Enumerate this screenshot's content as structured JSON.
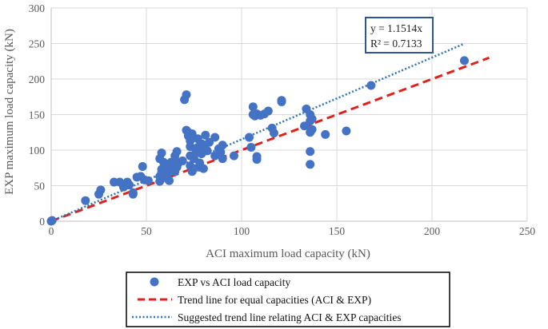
{
  "chart_data": {
    "type": "scatter",
    "xlabel": "ACI maximum load capacity (kN)",
    "ylabel": "EXP maximum load capacity (kN)",
    "xlim": [
      0,
      250
    ],
    "ylim": [
      0,
      300
    ],
    "x_ticks": [
      "0",
      "50",
      "100",
      "150",
      "200",
      "250"
    ],
    "y_ticks": [
      "0",
      "50",
      "100",
      "150",
      "200",
      "250",
      "300"
    ],
    "grid": true,
    "equation_box": {
      "line1": "y = 1.1514x",
      "line2": "R² = 0.7133"
    },
    "legend": {
      "placement": "bottom",
      "entries": [
        {
          "label": "EXP vs ACI load capacity",
          "color": "#4472C4",
          "marker": "circle"
        },
        {
          "label": "Trend line for equal capacities (ACI & EXP)",
          "color": "#E0201B",
          "marker": "dashed-line"
        },
        {
          "label": "Suggested trend line relating ACI & EXP capacities",
          "color": "#2E75B6",
          "marker": "dotted-line"
        }
      ]
    },
    "series": [
      {
        "name": "EXP vs ACI load capacity",
        "color": "#4472C4",
        "points": [
          [
            0,
            0
          ],
          [
            0.5,
            1
          ],
          [
            18,
            29
          ],
          [
            25,
            38
          ],
          [
            26,
            44
          ],
          [
            33,
            55
          ],
          [
            36,
            55
          ],
          [
            38,
            48
          ],
          [
            40,
            55
          ],
          [
            41,
            51
          ],
          [
            43,
            40
          ],
          [
            43,
            38
          ],
          [
            45,
            62
          ],
          [
            47,
            63
          ],
          [
            48,
            77
          ],
          [
            49,
            58
          ],
          [
            51,
            57
          ],
          [
            57,
            56
          ],
          [
            57,
            63
          ],
          [
            57,
            88
          ],
          [
            58,
            96
          ],
          [
            58,
            69
          ],
          [
            58,
            73
          ],
          [
            59,
            83
          ],
          [
            60,
            71
          ],
          [
            60,
            79
          ],
          [
            61,
            65
          ],
          [
            61,
            60
          ],
          [
            62,
            57
          ],
          [
            63,
            75
          ],
          [
            63,
            83
          ],
          [
            64,
            78
          ],
          [
            65,
            70
          ],
          [
            65,
            92
          ],
          [
            66,
            98
          ],
          [
            66,
            76
          ],
          [
            67,
            83
          ],
          [
            69,
            85
          ],
          [
            70,
            171
          ],
          [
            71,
            178
          ],
          [
            71,
            128
          ],
          [
            72,
            125
          ],
          [
            72,
            120
          ],
          [
            73,
            113
          ],
          [
            73,
            105
          ],
          [
            73,
            78
          ],
          [
            73,
            92
          ],
          [
            74,
            123
          ],
          [
            74,
            70
          ],
          [
            75,
            74
          ],
          [
            75,
            88
          ],
          [
            76,
            100
          ],
          [
            76,
            96
          ],
          [
            77,
            116
          ],
          [
            77,
            104
          ],
          [
            78,
            82
          ],
          [
            78,
            76
          ],
          [
            79,
            95
          ],
          [
            79,
            109
          ],
          [
            80,
            74
          ],
          [
            80,
            103
          ],
          [
            81,
            121
          ],
          [
            81,
            100
          ],
          [
            82,
            99
          ],
          [
            83,
            111
          ],
          [
            86,
            118
          ],
          [
            86,
            92
          ],
          [
            88,
            102
          ],
          [
            89,
            97
          ],
          [
            90,
            107
          ],
          [
            90,
            88
          ],
          [
            96,
            92
          ],
          [
            104,
            118
          ],
          [
            105,
            104
          ],
          [
            106,
            161
          ],
          [
            106,
            150
          ],
          [
            107,
            148
          ],
          [
            108,
            151
          ],
          [
            108,
            91
          ],
          [
            108,
            87
          ],
          [
            110,
            149
          ],
          [
            112,
            151
          ],
          [
            114,
            155
          ],
          [
            116,
            131
          ],
          [
            117,
            124
          ],
          [
            121,
            168
          ],
          [
            121,
            170
          ],
          [
            133,
            134
          ],
          [
            134,
            158
          ],
          [
            136,
            150
          ],
          [
            136,
            141
          ],
          [
            136,
            125
          ],
          [
            136,
            98
          ],
          [
            136,
            80
          ],
          [
            137,
            144
          ],
          [
            137,
            129
          ],
          [
            144,
            122
          ],
          [
            155,
            127
          ],
          [
            168,
            191
          ],
          [
            217,
            226
          ]
        ]
      },
      {
        "name": "Trend line for equal capacities (ACI & EXP)",
        "color": "#E0201B",
        "points": [
          [
            0,
            0
          ],
          [
            230,
            230
          ]
        ]
      },
      {
        "name": "Suggested trend line relating ACI & EXP capacities",
        "color": "#2E75B6",
        "points": [
          [
            0,
            0
          ],
          [
            217,
            249.85
          ]
        ]
      }
    ]
  }
}
